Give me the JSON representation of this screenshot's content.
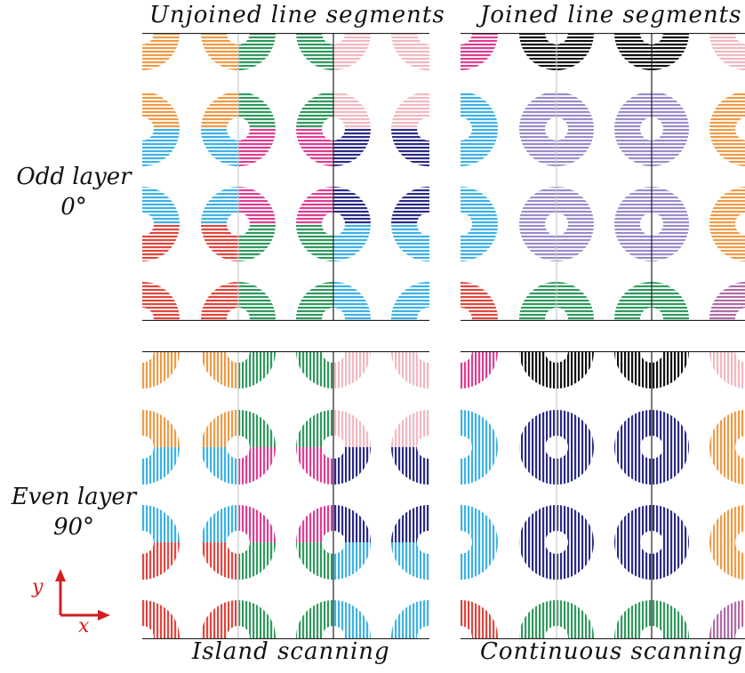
{
  "columns": {
    "left": "Unjoined line segments",
    "right": "Joined line segments"
  },
  "rows": {
    "odd_label": "Odd layer",
    "odd_angle": "0°",
    "even_label": "Even layer",
    "even_angle": "90°"
  },
  "footers": {
    "left": "Island scanning",
    "right": "Continuous scanning"
  },
  "axes": {
    "y": "y",
    "x": "x",
    "color": "#d11f1f"
  },
  "colors": {
    "orange": "#ef9a45",
    "green": "#2e9a5c",
    "pink": "#f2b8c0",
    "blue": "#3cb2e6",
    "magenta": "#e03c93",
    "navy": "#2a2a86",
    "red": "#e2453d",
    "purple": "#9b8bcb",
    "black": "#111111",
    "mauve": "#b06aa8"
  }
}
